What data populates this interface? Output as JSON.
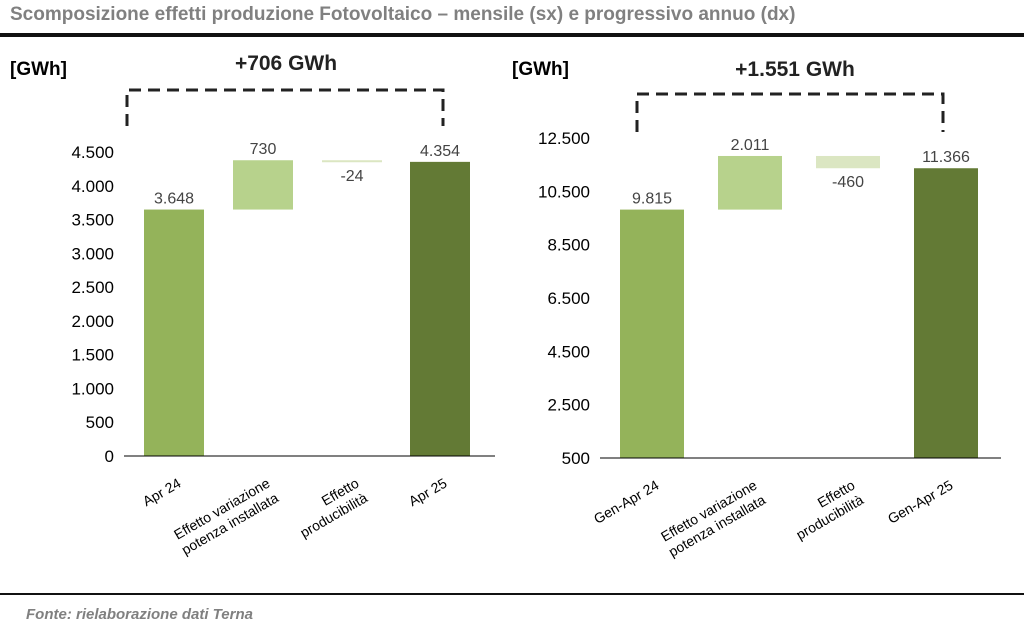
{
  "header": {
    "title": "Scomposizione effetti produzione Fotovoltaico – mensile (sx) e progressivo annuo (dx)"
  },
  "footer": {
    "source": "Fonte: rielaborazione dati Terna"
  },
  "colors": {
    "start_bar": "#94b35a",
    "increase_bar": "#b7d28c",
    "decrease_bar": "#dbe6c2",
    "end_bar": "#637a35",
    "axis": "#000000",
    "label_text": "#444444",
    "bracket": "#222222"
  },
  "chart_data": [
    {
      "type": "bar",
      "subtype": "waterfall",
      "unit_label": "[GWh]",
      "delta_label": "+706 GWh",
      "categories": [
        "Apr 24",
        "Effetto variazione potenza installata",
        "Effetto producibilità",
        "Apr  25"
      ],
      "category_lines": [
        [
          "Apr 24"
        ],
        [
          "Effetto variazione",
          "potenza installata"
        ],
        [
          "Effetto",
          "producibilità"
        ],
        [
          "Apr  25"
        ]
      ],
      "values": [
        3648,
        730,
        -24,
        4354
      ],
      "value_labels": [
        "3.648",
        "730",
        "-24",
        "4.354"
      ],
      "kinds": [
        "total",
        "delta",
        "delta",
        "total"
      ],
      "yticks": [
        0,
        500,
        1000,
        1500,
        2000,
        2500,
        3000,
        3500,
        4000,
        4500
      ],
      "ytick_labels": [
        "0",
        "500",
        "1.000",
        "1.500",
        "2.000",
        "2.500",
        "3.000",
        "3.500",
        "4.000",
        "4.500"
      ],
      "ylim": [
        0,
        4500
      ]
    },
    {
      "type": "bar",
      "subtype": "waterfall",
      "unit_label": "[GWh]",
      "delta_label": "+1.551 GWh",
      "categories": [
        "Gen-Apr 24",
        "Effetto variazione potenza installata",
        "Effetto producibilità",
        "Gen-Apr 25"
      ],
      "category_lines": [
        [
          "Gen-Apr 24"
        ],
        [
          "Effetto variazione",
          "potenza installata"
        ],
        [
          "Effetto",
          "producibilità"
        ],
        [
          "Gen-Apr 25"
        ]
      ],
      "values": [
        9815,
        2011,
        -460,
        11366
      ],
      "value_labels": [
        "9.815",
        "2.011",
        "-460",
        "11.366"
      ],
      "kinds": [
        "total",
        "delta",
        "delta",
        "total"
      ],
      "yticks": [
        500,
        2500,
        4500,
        6500,
        8500,
        10500,
        12500
      ],
      "ytick_labels": [
        "500",
        "2.500",
        "4.500",
        "6.500",
        "8.500",
        "10.500",
        "12.500"
      ],
      "ylim": [
        500,
        12500
      ]
    }
  ]
}
